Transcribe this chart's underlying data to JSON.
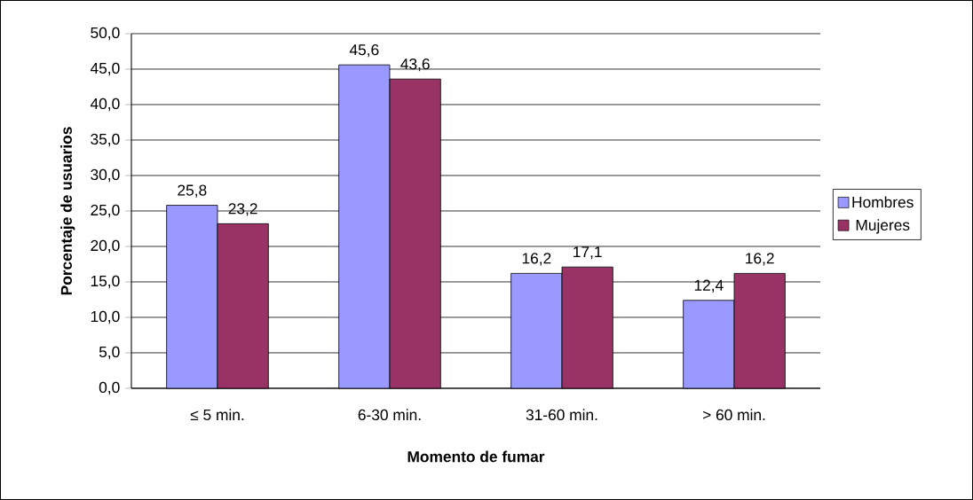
{
  "chart_data": {
    "type": "bar",
    "xlabel": "Momento de fumar",
    "ylabel": "Porcentaje de usuarios",
    "categories": [
      "≤ 5 min.",
      "6-30 min.",
      "31-60 min.",
      "> 60 min."
    ],
    "series": [
      {
        "name": "Hombres",
        "color": "#9999ff",
        "values": [
          25.8,
          45.6,
          16.2,
          12.4
        ],
        "value_labels": [
          "25,8",
          "45,6",
          "16,2",
          "12,4"
        ]
      },
      {
        "name": "Mujeres",
        "color": "#993366",
        "values": [
          23.2,
          43.6,
          17.1,
          16.2
        ],
        "value_labels": [
          "23,2",
          "43,6",
          "17,1",
          "16,2"
        ]
      }
    ],
    "ylim": [
      0,
      50
    ],
    "yticks": [
      {
        "value": 0,
        "label": "0,0"
      },
      {
        "value": 5,
        "label": "5,0"
      },
      {
        "value": 10,
        "label": "10,0"
      },
      {
        "value": 15,
        "label": "15,0"
      },
      {
        "value": 20,
        "label": "20,0"
      },
      {
        "value": 25,
        "label": "25,0"
      },
      {
        "value": 30,
        "label": "30,0"
      },
      {
        "value": 35,
        "label": "35,0"
      },
      {
        "value": 40,
        "label": "40,0"
      },
      {
        "value": 45,
        "label": "45,0"
      },
      {
        "value": 50,
        "label": "50,0"
      }
    ],
    "grid": "y",
    "legend": "right"
  }
}
